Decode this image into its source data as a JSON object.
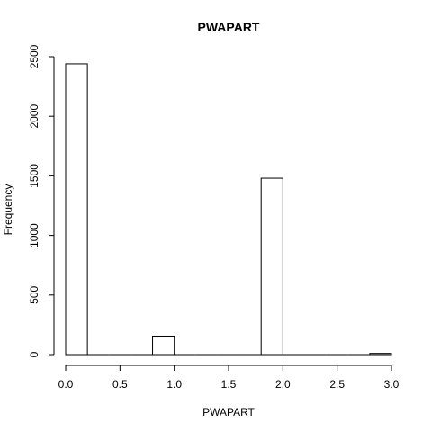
{
  "chart_data": {
    "type": "bar",
    "title": "PWAPART",
    "xlabel": "PWAPART",
    "ylabel": "Frequency",
    "xlim": [
      0,
      3
    ],
    "ylim": [
      0,
      2500
    ],
    "x_ticks": [
      0,
      0.5,
      1,
      1.5,
      2,
      2.5,
      3
    ],
    "x_tick_labels": [
      "0.0",
      "0.5",
      "1.0",
      "1.5",
      "2.0",
      "2.5",
      "3.0"
    ],
    "y_ticks": [
      0,
      500,
      1000,
      1500,
      2000,
      2500
    ],
    "y_tick_labels": [
      "0",
      "500",
      "1000",
      "1500",
      "2000",
      "2500"
    ],
    "bins": [
      {
        "x0": 0.0,
        "x1": 0.2,
        "value": 2440
      },
      {
        "x0": 0.2,
        "x1": 0.4,
        "value": 0
      },
      {
        "x0": 0.4,
        "x1": 0.6,
        "value": 0
      },
      {
        "x0": 0.6,
        "x1": 0.8,
        "value": 0
      },
      {
        "x0": 0.8,
        "x1": 1.0,
        "value": 155
      },
      {
        "x0": 1.0,
        "x1": 1.2,
        "value": 0
      },
      {
        "x0": 1.2,
        "x1": 1.4,
        "value": 0
      },
      {
        "x0": 1.4,
        "x1": 1.6,
        "value": 0
      },
      {
        "x0": 1.6,
        "x1": 1.8,
        "value": 0
      },
      {
        "x0": 1.8,
        "x1": 2.0,
        "value": 1480
      },
      {
        "x0": 2.0,
        "x1": 2.2,
        "value": 0
      },
      {
        "x0": 2.2,
        "x1": 2.4,
        "value": 0
      },
      {
        "x0": 2.4,
        "x1": 2.6,
        "value": 0
      },
      {
        "x0": 2.6,
        "x1": 2.8,
        "value": 0
      },
      {
        "x0": 2.8,
        "x1": 3.0,
        "value": 10
      }
    ]
  }
}
